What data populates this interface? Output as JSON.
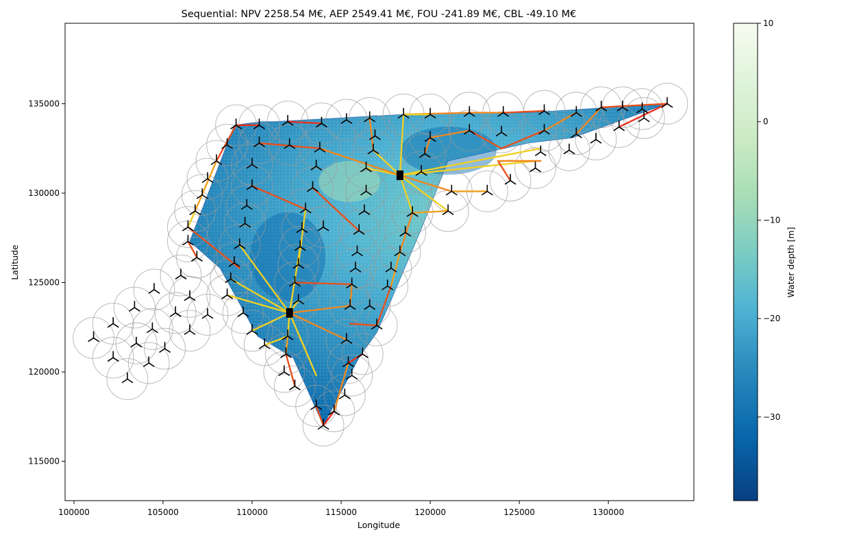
{
  "chart_data": {
    "type": "map",
    "title": "Sequential: NPV 2258.54 M€, AEP 2549.41 M€, FOU -241.89 M€, CBL -49.10 M€",
    "xlabel": "Longitude",
    "ylabel": "Latitude",
    "xlim": [
      99500,
      134800
    ],
    "ylim": [
      112800,
      139500
    ],
    "xticks": [
      100000,
      105000,
      110000,
      115000,
      120000,
      125000,
      130000
    ],
    "yticks": [
      115000,
      120000,
      125000,
      130000,
      135000
    ],
    "grid": false,
    "colorbar": {
      "label": "Water depth [m]",
      "range": [
        -38.5,
        10
      ],
      "ticks": [
        10,
        0,
        -10,
        -20,
        -30
      ],
      "colormap": [
        "#f7fcf0",
        "#e0f3db",
        "#ccebc5",
        "#a8ddb5",
        "#7bccc4",
        "#4eb3d3",
        "#2b8cbe",
        "#0868ac",
        "#084081"
      ]
    },
    "site_boundary": [
      [
        111200,
        134000
      ],
      [
        118500,
        134400
      ],
      [
        121500,
        134500
      ],
      [
        125500,
        134500
      ],
      [
        133300,
        135000
      ],
      [
        128000,
        133100
      ],
      [
        125500,
        132800
      ],
      [
        121000,
        131800
      ],
      [
        119500,
        128000
      ],
      [
        117800,
        124000
      ],
      [
        117000,
        122200
      ],
      [
        116000,
        120800
      ],
      [
        114000,
        117000
      ],
      [
        112300,
        120800
      ],
      [
        110300,
        122000
      ],
      [
        109200,
        124000
      ],
      [
        108200,
        125800
      ],
      [
        106500,
        127300
      ],
      [
        109000,
        133800
      ],
      [
        110500,
        134000
      ]
    ],
    "substations": [
      [
        118300,
        131000
      ],
      [
        112100,
        123300
      ]
    ],
    "turbines": [
      [
        133300,
        135000
      ],
      [
        131900,
        134700
      ],
      [
        130800,
        134800
      ],
      [
        129600,
        134800
      ],
      [
        128200,
        134500
      ],
      [
        126400,
        134600
      ],
      [
        124100,
        134500
      ],
      [
        122200,
        134500
      ],
      [
        120000,
        134400
      ],
      [
        118500,
        134400
      ],
      [
        116600,
        134200
      ],
      [
        115300,
        134100
      ],
      [
        113900,
        133900
      ],
      [
        112000,
        134000
      ],
      [
        110400,
        133800
      ],
      [
        109100,
        133800
      ],
      [
        108600,
        132700
      ],
      [
        108000,
        131800
      ],
      [
        107500,
        130800
      ],
      [
        107200,
        129900
      ],
      [
        106800,
        129000
      ],
      [
        106400,
        128100
      ],
      [
        106400,
        127300
      ],
      [
        106900,
        126400
      ],
      [
        109000,
        126100
      ],
      [
        108800,
        125200
      ],
      [
        108600,
        124300
      ],
      [
        109500,
        123300
      ],
      [
        110000,
        122300
      ],
      [
        110700,
        121500
      ],
      [
        112000,
        122000
      ],
      [
        111900,
        121000
      ],
      [
        111800,
        120000
      ],
      [
        112400,
        119200
      ],
      [
        113600,
        118100
      ],
      [
        114000,
        117000
      ],
      [
        114600,
        117800
      ],
      [
        115200,
        118700
      ],
      [
        115600,
        119800
      ],
      [
        115400,
        120500
      ],
      [
        115300,
        121800
      ],
      [
        116200,
        121000
      ],
      [
        117000,
        122600
      ],
      [
        116600,
        123700
      ],
      [
        115600,
        124900
      ],
      [
        115500,
        123700
      ],
      [
        117600,
        124800
      ],
      [
        117800,
        125800
      ],
      [
        118300,
        126700
      ],
      [
        118600,
        127800
      ],
      [
        119000,
        128900
      ],
      [
        121000,
        129000
      ],
      [
        121200,
        130100
      ],
      [
        123200,
        130100
      ],
      [
        124500,
        130700
      ],
      [
        125900,
        131400
      ],
      [
        126200,
        132300
      ],
      [
        127800,
        132400
      ],
      [
        129300,
        133000
      ],
      [
        130600,
        133700
      ],
      [
        132000,
        134200
      ],
      [
        128200,
        133300
      ],
      [
        126400,
        133500
      ],
      [
        124000,
        133400
      ],
      [
        122200,
        133500
      ],
      [
        120000,
        133100
      ],
      [
        119700,
        132200
      ],
      [
        119500,
        131200
      ],
      [
        116800,
        132400
      ],
      [
        116900,
        133200
      ],
      [
        116400,
        131400
      ],
      [
        116400,
        130100
      ],
      [
        116300,
        129000
      ],
      [
        116000,
        127900
      ],
      [
        115900,
        126700
      ],
      [
        115800,
        125800
      ],
      [
        114000,
        128100
      ],
      [
        113400,
        130300
      ],
      [
        113600,
        131500
      ],
      [
        113800,
        132500
      ],
      [
        112100,
        132700
      ],
      [
        110400,
        132800
      ],
      [
        110000,
        131600
      ],
      [
        110000,
        130400
      ],
      [
        109700,
        129300
      ],
      [
        109600,
        128300
      ],
      [
        109300,
        127100
      ],
      [
        113000,
        129100
      ],
      [
        112800,
        128000
      ],
      [
        112700,
        127000
      ],
      [
        112600,
        126000
      ],
      [
        112400,
        125000
      ],
      [
        112600,
        124000
      ],
      [
        104500,
        124600
      ],
      [
        103400,
        123600
      ],
      [
        102200,
        122700
      ],
      [
        101100,
        121900
      ],
      [
        102200,
        120800
      ],
      [
        103000,
        119600
      ],
      [
        103500,
        121600
      ],
      [
        104400,
        122400
      ],
      [
        104200,
        120500
      ],
      [
        105100,
        121300
      ],
      [
        105700,
        123300
      ],
      [
        106000,
        125400
      ],
      [
        106500,
        124200
      ],
      [
        106500,
        122300
      ],
      [
        107500,
        123200
      ]
    ],
    "cable_links": [
      [
        [
          118300,
          131000
        ],
        [
          118500,
          134400
        ],
        "#f0d024"
      ],
      [
        [
          118300,
          131000
        ],
        [
          116400,
          131400
        ],
        "#f0d024"
      ],
      [
        [
          118300,
          131000
        ],
        [
          119500,
          131200
        ],
        "#f0d024"
      ],
      [
        [
          118300,
          131000
        ],
        [
          126200,
          132500
        ],
        "#f0d024"
      ],
      [
        [
          118300,
          131000
        ],
        [
          121000,
          129000
        ],
        "#f0d024"
      ],
      [
        [
          118300,
          131000
        ],
        [
          119000,
          128900
        ],
        "#f0d024"
      ],
      [
        [
          118300,
          131000
        ],
        [
          125900,
          131800
        ],
        "#f0d024"
      ],
      [
        [
          118300,
          131000
        ],
        [
          113800,
          132500
        ],
        "#f08820"
      ],
      [
        [
          118300,
          131000
        ],
        [
          121200,
          130100
        ],
        "#f08820"
      ],
      [
        [
          118300,
          131000
        ],
        [
          116800,
          132400
        ],
        "#f0d024"
      ],
      [
        [
          112100,
          123300
        ],
        [
          109300,
          127100
        ],
        "#f0d024"
      ],
      [
        [
          112100,
          123300
        ],
        [
          108600,
          124300
        ],
        "#f0d024"
      ],
      [
        [
          112100,
          123300
        ],
        [
          110000,
          122300
        ],
        "#f0d024"
      ],
      [
        [
          112100,
          123300
        ],
        [
          112600,
          124000
        ],
        "#f0d024"
      ],
      [
        [
          112100,
          123300
        ],
        [
          112700,
          127000
        ],
        "#f0d024"
      ],
      [
        [
          112100,
          123300
        ],
        [
          115500,
          123700
        ],
        "#f08820"
      ],
      [
        [
          112100,
          123300
        ],
        [
          113600,
          119800
        ],
        "#f0d024"
      ],
      [
        [
          112100,
          123300
        ],
        [
          115300,
          121800
        ],
        "#f08820"
      ],
      [
        [
          112100,
          123300
        ],
        [
          112000,
          122000
        ],
        "#f0d024"
      ],
      [
        [
          112100,
          123300
        ],
        [
          108800,
          125200
        ],
        "#f0d024"
      ],
      [
        [
          133300,
          135000
        ],
        [
          129600,
          134800
        ],
        "#e8501c"
      ],
      [
        [
          129600,
          134800
        ],
        [
          128200,
          133300
        ],
        "#f08820"
      ],
      [
        [
          126400,
          134600
        ],
        [
          124100,
          134500
        ],
        "#e8501c"
      ],
      [
        [
          124100,
          134500
        ],
        [
          122200,
          134500
        ],
        "#f08820"
      ],
      [
        [
          122200,
          134500
        ],
        [
          118500,
          134400
        ],
        "#f08820"
      ],
      [
        [
          120000,
          134400
        ],
        [
          118500,
          134400
        ],
        "#f0d024"
      ],
      [
        [
          113900,
          133900
        ],
        [
          112000,
          134000
        ],
        "#e83020"
      ],
      [
        [
          110400,
          133800
        ],
        [
          109100,
          133800
        ],
        "#e83020"
      ],
      [
        [
          109100,
          133800
        ],
        [
          108000,
          131800
        ],
        "#e8501c"
      ],
      [
        [
          108000,
          131800
        ],
        [
          106800,
          129000
        ],
        "#f0a020"
      ],
      [
        [
          106800,
          129000
        ],
        [
          106400,
          128100
        ],
        "#f0d024"
      ],
      [
        [
          106400,
          128100
        ],
        [
          109300,
          125800
        ],
        "#e8501c"
      ],
      [
        [
          106400,
          127300
        ],
        [
          106900,
          126400
        ],
        "#e8501c"
      ],
      [
        [
          110400,
          132800
        ],
        [
          113800,
          132500
        ],
        "#e8501c"
      ],
      [
        [
          110000,
          130400
        ],
        [
          113000,
          129100
        ],
        "#e8501c"
      ],
      [
        [
          113000,
          129100
        ],
        [
          112600,
          126000
        ],
        "#f0d024"
      ],
      [
        [
          112400,
          125000
        ],
        [
          115600,
          124900
        ],
        "#e8501c"
      ],
      [
        [
          115500,
          123700
        ],
        [
          115600,
          124900
        ],
        "#f08820"
      ],
      [
        [
          116000,
          127900
        ],
        [
          113400,
          130300
        ],
        "#e8501c"
      ],
      [
        [
          116800,
          132400
        ],
        [
          116600,
          134200
        ],
        "#f08820"
      ],
      [
        [
          119700,
          132200
        ],
        [
          120000,
          133100
        ],
        "#f08820"
      ],
      [
        [
          120000,
          133100
        ],
        [
          122200,
          133500
        ],
        "#f08820"
      ],
      [
        [
          122200,
          133500
        ],
        [
          124000,
          132500
        ],
        "#e8501c"
      ],
      [
        [
          124000,
          132500
        ],
        [
          126400,
          133500
        ],
        "#e8501c"
      ],
      [
        [
          126400,
          133500
        ],
        [
          128200,
          134500
        ],
        "#f08820"
      ],
      [
        [
          130600,
          133700
        ],
        [
          133300,
          135000
        ],
        "#e83020"
      ],
      [
        [
          121000,
          129000
        ],
        [
          119000,
          128900
        ],
        "#f0a020"
      ],
      [
        [
          119000,
          128900
        ],
        [
          118300,
          126700
        ],
        "#f08820"
      ],
      [
        [
          118300,
          126700
        ],
        [
          117800,
          124800
        ],
        "#f0a020"
      ],
      [
        [
          117800,
          124800
        ],
        [
          117000,
          122600
        ],
        "#e8501c"
      ],
      [
        [
          117000,
          122600
        ],
        [
          115500,
          122700
        ],
        "#e8501c"
      ],
      [
        [
          116200,
          121000
        ],
        [
          115400,
          120500
        ],
        "#e83020"
      ],
      [
        [
          115400,
          120500
        ],
        [
          114600,
          117800
        ],
        "#f08820"
      ],
      [
        [
          114600,
          117800
        ],
        [
          114000,
          117000
        ],
        "#e83020"
      ],
      [
        [
          113600,
          118100
        ],
        [
          114000,
          117000
        ],
        "#e8501c"
      ],
      [
        [
          112400,
          119200
        ],
        [
          111900,
          121000
        ],
        "#e8501c"
      ],
      [
        [
          111900,
          121000
        ],
        [
          112000,
          122000
        ],
        "#f0a020"
      ],
      [
        [
          110700,
          121500
        ],
        [
          112000,
          122000
        ],
        "#f0d024"
      ],
      [
        [
          123200,
          130100
        ],
        [
          121200,
          130100
        ],
        "#f0a020"
      ],
      [
        [
          124500,
          130700
        ],
        [
          123800,
          131800
        ],
        "#e8501c"
      ],
      [
        [
          123800,
          131800
        ],
        [
          126200,
          131800
        ],
        "#f08820"
      ]
    ]
  }
}
